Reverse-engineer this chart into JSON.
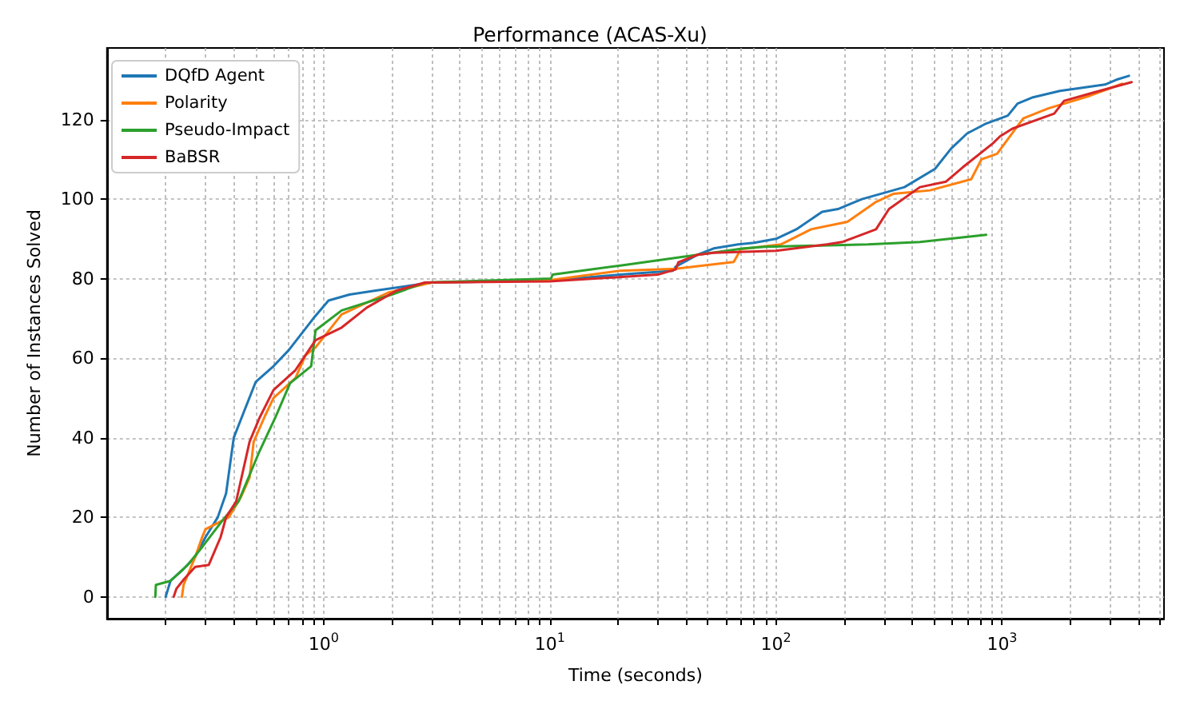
{
  "chart_data": {
    "type": "line",
    "title": "Performance (ACAS-Xu)",
    "xlabel": "Time (seconds)",
    "ylabel": "Number of Instances Solved",
    "log": "x",
    "grid": true,
    "legend": "top left",
    "marker": "none",
    "line_style": "solid",
    "xlim": [
      0.11,
      5200
    ],
    "ylim": [
      -5.5,
      138
    ],
    "yticks": [
      0,
      20,
      40,
      60,
      80,
      100,
      120
    ],
    "xticks": [
      {
        "value": 0.2,
        "label": null
      },
      {
        "value": 0.3,
        "label": null
      },
      {
        "value": 0.4,
        "label": null
      },
      {
        "value": 0.5,
        "label": null
      },
      {
        "value": 0.6,
        "label": null
      },
      {
        "value": 0.7,
        "label": null
      },
      {
        "value": 0.8,
        "label": null
      },
      {
        "value": 0.9,
        "label": null
      },
      {
        "value": 1,
        "label": "10$^{0}$"
      },
      {
        "value": 2,
        "label": null
      },
      {
        "value": 3,
        "label": null
      },
      {
        "value": 4,
        "label": null
      },
      {
        "value": 5,
        "label": null
      },
      {
        "value": 6,
        "label": null
      },
      {
        "value": 7,
        "label": null
      },
      {
        "value": 8,
        "label": null
      },
      {
        "value": 9,
        "label": null
      },
      {
        "value": 10,
        "label": "10$^{1}$"
      },
      {
        "value": 20,
        "label": null
      },
      {
        "value": 30,
        "label": null
      },
      {
        "value": 40,
        "label": null
      },
      {
        "value": 50,
        "label": null
      },
      {
        "value": 60,
        "label": null
      },
      {
        "value": 70,
        "label": null
      },
      {
        "value": 80,
        "label": null
      },
      {
        "value": 90,
        "label": null
      },
      {
        "value": 100,
        "label": "10$^{2}$"
      },
      {
        "value": 200,
        "label": null
      },
      {
        "value": 300,
        "label": null
      },
      {
        "value": 400,
        "label": null
      },
      {
        "value": 500,
        "label": null
      },
      {
        "value": 600,
        "label": null
      },
      {
        "value": 700,
        "label": null
      },
      {
        "value": 800,
        "label": null
      },
      {
        "value": 900,
        "label": null
      },
      {
        "value": 1000,
        "label": "10$^{3}$"
      },
      {
        "value": 2000,
        "label": null
      },
      {
        "value": 3000,
        "label": null
      },
      {
        "value": 4000,
        "label": null
      },
      {
        "value": 5000,
        "label": null
      }
    ],
    "series": [
      {
        "name": "DQfD Agent",
        "color": "#1f77b4",
        "x": [
          0.2,
          0.21,
          0.24,
          0.27,
          0.3,
          0.34,
          0.37,
          0.4,
          0.44,
          0.5,
          0.6,
          0.7,
          0.9,
          1.05,
          1.3,
          1.7,
          3,
          10,
          20.5,
          35,
          36,
          45,
          53,
          68,
          80,
          100,
          123,
          160,
          188,
          240,
          370,
          505,
          595,
          700,
          850,
          1060,
          1170,
          1370,
          1800,
          2850,
          3200,
          3640
        ],
        "values": [
          0,
          4,
          7,
          10,
          15,
          20,
          26,
          40,
          46,
          54,
          58,
          62,
          70,
          74.5,
          76,
          77,
          79,
          79.5,
          81,
          82,
          83,
          86,
          87.6,
          88.6,
          89,
          90,
          92.4,
          96.8,
          97.5,
          100,
          103,
          107.6,
          112.7,
          116.5,
          119,
          121,
          124,
          125.6,
          127.2,
          128.8,
          130,
          131
        ]
      },
      {
        "name": "Polarity",
        "color": "#ff7f0e",
        "x": [
          0.236,
          0.24,
          0.27,
          0.29,
          0.3,
          0.38,
          0.43,
          0.47,
          0.49,
          0.55,
          0.6,
          0.75,
          0.83,
          0.92,
          1.2,
          1.93,
          3,
          10,
          20.5,
          36,
          65,
          70,
          105,
          143,
          207,
          277,
          330,
          480,
          730,
          810,
          950,
          1240,
          1600,
          2450,
          3400
        ],
        "values": [
          0,
          3,
          10,
          15,
          17,
          20,
          25,
          30,
          39,
          45.5,
          50,
          55,
          60.7,
          62.7,
          71,
          76.5,
          79,
          79.6,
          82,
          82.5,
          84.2,
          87.4,
          88.6,
          92.4,
          94.3,
          99.3,
          101.3,
          102.2,
          105,
          110,
          111.4,
          120.3,
          122.8,
          126,
          129
        ]
      },
      {
        "name": "Pseudo-Impact",
        "color": "#2ca02c",
        "x": [
          0.18,
          0.181,
          0.21,
          0.25,
          0.29,
          0.36,
          0.42,
          0.52,
          0.61,
          0.71,
          0.88,
          0.92,
          1.2,
          2,
          2.8,
          10.1,
          10.3,
          20.5,
          45,
          72,
          89,
          255,
          433,
          850
        ],
        "values": [
          0,
          3,
          4,
          8,
          12.5,
          19.5,
          24,
          36.6,
          45,
          53.7,
          58,
          67,
          72,
          76,
          79,
          80,
          81,
          83.3,
          86,
          87.6,
          88,
          88.6,
          89.2,
          91
        ]
      },
      {
        "name": "BaBSR",
        "color": "#d62728",
        "x": [
          0.217,
          0.223,
          0.24,
          0.27,
          0.31,
          0.35,
          0.37,
          0.41,
          0.47,
          0.52,
          0.6,
          0.75,
          0.92,
          1.2,
          1.55,
          2.1,
          2.8,
          10,
          30,
          36,
          37,
          45,
          53,
          100,
          168,
          196,
          277,
          316,
          433,
          565,
          670,
          910,
          980,
          1110,
          1700,
          1880,
          2540,
          3740
        ],
        "values": [
          0,
          2,
          4.3,
          7.5,
          8,
          15,
          20,
          24,
          39,
          45,
          52,
          57,
          64.5,
          67.7,
          72.7,
          77,
          79,
          79.3,
          81,
          82.3,
          84.1,
          86,
          86.5,
          87,
          88.6,
          89.2,
          92.4,
          97.5,
          103,
          104.4,
          108,
          114,
          115.8,
          117.7,
          121.5,
          124.7,
          126.8,
          129.4
        ]
      }
    ]
  }
}
